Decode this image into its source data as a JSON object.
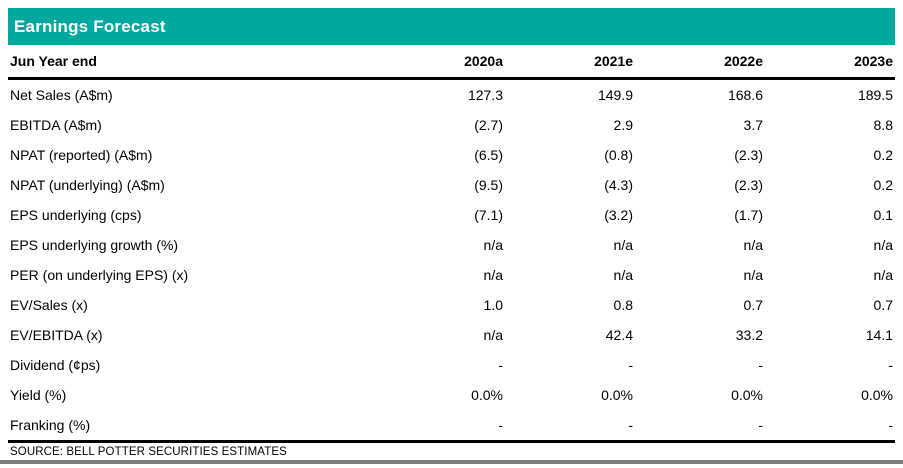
{
  "title": "Earnings Forecast",
  "table": {
    "header": {
      "label": "Jun Year end",
      "columns": [
        "2020a",
        "2021e",
        "2022e",
        "2023e"
      ]
    },
    "rows": [
      {
        "label": "Net Sales (A$m)",
        "values": [
          "127.3",
          "149.9",
          "168.6",
          "189.5"
        ]
      },
      {
        "label": "EBITDA (A$m)",
        "values": [
          "(2.7)",
          "2.9",
          "3.7",
          "8.8"
        ]
      },
      {
        "label": "NPAT (reported) (A$m)",
        "values": [
          "(6.5)",
          "(0.8)",
          "(2.3)",
          "0.2"
        ]
      },
      {
        "label": "NPAT (underlying) (A$m)",
        "values": [
          "(9.5)",
          "(4.3)",
          "(2.3)",
          "0.2"
        ]
      },
      {
        "label": "EPS underlying (cps)",
        "values": [
          "(7.1)",
          "(3.2)",
          "(1.7)",
          "0.1"
        ]
      },
      {
        "label": "EPS underlying growth (%)",
        "values": [
          "n/a",
          "n/a",
          "n/a",
          "n/a"
        ]
      },
      {
        "label": "PER (on underlying EPS) (x)",
        "values": [
          "n/a",
          "n/a",
          "n/a",
          "n/a"
        ]
      },
      {
        "label": "EV/Sales (x)",
        "values": [
          "1.0",
          "0.8",
          "0.7",
          "0.7"
        ]
      },
      {
        "label": "EV/EBITDA (x)",
        "values": [
          "n/a",
          "42.4",
          "33.2",
          "14.1"
        ]
      },
      {
        "label": "Dividend (¢ps)",
        "values": [
          "-",
          "-",
          "-",
          "-"
        ]
      },
      {
        "label": "Yield (%)",
        "values": [
          "0.0%",
          "0.0%",
          "0.0%",
          "0.0%"
        ]
      },
      {
        "label": "Franking (%)",
        "values": [
          "-",
          "-",
          "-",
          "-"
        ]
      }
    ]
  },
  "source": "SOURCE: BELL POTTER SECURITIES ESTIMATES",
  "colors": {
    "accent_teal": "#00a89e",
    "bottom_bar_gray": "#7d7d7d",
    "rule_black": "#000000"
  },
  "chart_data": {
    "type": "table",
    "title": "Earnings Forecast",
    "row_header": "Jun Year end",
    "categories": [
      "2020a",
      "2021e",
      "2022e",
      "2023e"
    ],
    "series": [
      {
        "name": "Net Sales (A$m)",
        "values": [
          "127.3",
          "149.9",
          "168.6",
          "189.5"
        ]
      },
      {
        "name": "EBITDA (A$m)",
        "values": [
          "(2.7)",
          "2.9",
          "3.7",
          "8.8"
        ]
      },
      {
        "name": "NPAT (reported) (A$m)",
        "values": [
          "(6.5)",
          "(0.8)",
          "(2.3)",
          "0.2"
        ]
      },
      {
        "name": "NPAT (underlying) (A$m)",
        "values": [
          "(9.5)",
          "(4.3)",
          "(2.3)",
          "0.2"
        ]
      },
      {
        "name": "EPS underlying (cps)",
        "values": [
          "(7.1)",
          "(3.2)",
          "(1.7)",
          "0.1"
        ]
      },
      {
        "name": "EPS underlying growth (%)",
        "values": [
          "n/a",
          "n/a",
          "n/a",
          "n/a"
        ]
      },
      {
        "name": "PER (on underlying EPS) (x)",
        "values": [
          "n/a",
          "n/a",
          "n/a",
          "n/a"
        ]
      },
      {
        "name": "EV/Sales (x)",
        "values": [
          "1.0",
          "0.8",
          "0.7",
          "0.7"
        ]
      },
      {
        "name": "EV/EBITDA (x)",
        "values": [
          "n/a",
          "42.4",
          "33.2",
          "14.1"
        ]
      },
      {
        "name": "Dividend (¢ps)",
        "values": [
          "-",
          "-",
          "-",
          "-"
        ]
      },
      {
        "name": "Yield (%)",
        "values": [
          "0.0%",
          "0.0%",
          "0.0%",
          "0.0%"
        ]
      },
      {
        "name": "Franking (%)",
        "values": [
          "-",
          "-",
          "-",
          "-"
        ]
      }
    ],
    "source_note": "SOURCE: BELL POTTER SECURITIES ESTIMATES"
  }
}
